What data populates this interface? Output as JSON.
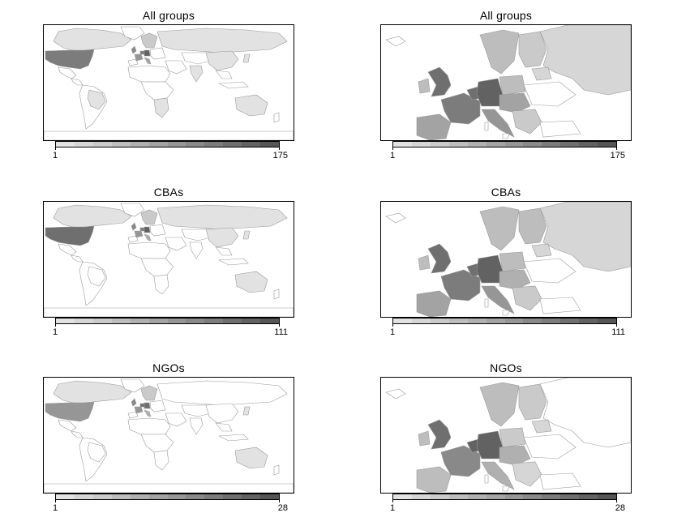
{
  "colors": {
    "ramp": [
      "#e2e2e2",
      "#d6d6d6",
      "#cacaca",
      "#bdbdbd",
      "#b0b0b0",
      "#a3a3a3",
      "#969696",
      "#898989",
      "#7c7c7c",
      "#6f6f6f",
      "#626262",
      "#555555"
    ],
    "no_data": "#ffffff",
    "border": "#9a9a9a"
  },
  "panels": [
    {
      "title": "All groups",
      "map": "world",
      "legend_min": "1",
      "legend_max": "175",
      "shading": {
        "usa": 0.72,
        "canada": 0.05,
        "uk": 0.6,
        "germany": 0.85,
        "france": 0.55,
        "benelux": 0.7,
        "italy": 0.45,
        "spain": 0.35,
        "nordic": 0.2,
        "russia": 0.05,
        "china": 0.05,
        "japan": 0.05,
        "australia": 0.05,
        "brazil": 0.05,
        "africa_south": 0.05,
        "india": 0.05
      }
    },
    {
      "title": "All groups",
      "map": "europe",
      "legend_min": "1",
      "legend_max": "175",
      "shading": {
        "uk": 0.75,
        "ireland": 0.3,
        "france": 0.7,
        "iberia": 0.45,
        "italy": 0.55,
        "germany": 0.85,
        "benelux": 0.8,
        "poland": 0.3,
        "nordic": 0.3,
        "finland": 0.2,
        "russia": 0.1,
        "central": 0.45,
        "balkans": 0.2,
        "baltics": 0.15
      }
    },
    {
      "title": "CBAs",
      "map": "world",
      "legend_min": "1",
      "legend_max": "111",
      "shading": {
        "usa": 0.8,
        "canada": 0.05,
        "uk": 0.6,
        "germany": 0.9,
        "france": 0.55,
        "benelux": 0.7,
        "italy": 0.4,
        "spain": 0.3,
        "nordic": 0.2,
        "russia": 0.05,
        "china": 0.05,
        "japan": 0.05,
        "australia": 0.05,
        "brazil": 0.0,
        "africa_south": 0.0,
        "india": 0.0
      }
    },
    {
      "title": "CBAs",
      "map": "europe",
      "legend_min": "1",
      "legend_max": "111",
      "shading": {
        "uk": 0.75,
        "ireland": 0.3,
        "france": 0.7,
        "iberia": 0.45,
        "italy": 0.55,
        "germany": 0.9,
        "benelux": 0.75,
        "poland": 0.3,
        "nordic": 0.3,
        "finland": 0.3,
        "russia": 0.1,
        "central": 0.35,
        "balkans": 0.2,
        "baltics": 0.15
      }
    },
    {
      "title": "NGOs",
      "map": "world",
      "legend_min": "1",
      "legend_max": "28",
      "shading": {
        "usa": 0.55,
        "canada": 0.05,
        "uk": 0.65,
        "germany": 0.8,
        "france": 0.5,
        "benelux": 0.75,
        "italy": 0.35,
        "spain": 0.3,
        "nordic": 0.2,
        "russia": 0.0,
        "china": 0.0,
        "japan": 0.05,
        "australia": 0.05,
        "brazil": 0.0,
        "africa_south": 0.0,
        "india": 0.0
      }
    },
    {
      "title": "NGOs",
      "map": "europe",
      "legend_min": "1",
      "legend_max": "28",
      "shading": {
        "uk": 0.8,
        "ireland": 0.3,
        "france": 0.6,
        "iberia": 0.3,
        "italy": 0.4,
        "germany": 0.85,
        "benelux": 0.9,
        "poland": 0.2,
        "nordic": 0.25,
        "finland": 0.2,
        "russia": 0.0,
        "central": 0.35,
        "balkans": 0.1,
        "baltics": 0.1
      }
    }
  ]
}
